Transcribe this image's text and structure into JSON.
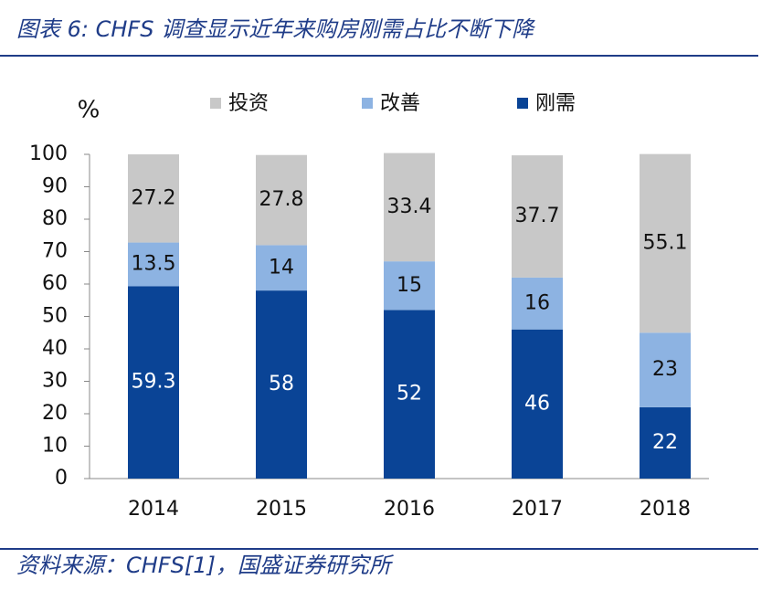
{
  "title": "图表 6:  CHFS 调查显示近年来购房刚需占比不断下降",
  "source": "资料来源：CHFS[1]，国盛证券研究所",
  "chart_data": {
    "type": "stacked-bar",
    "y_label": "%",
    "categories": [
      "2014",
      "2015",
      "2016",
      "2017",
      "2018"
    ],
    "series": [
      {
        "name": "投资",
        "color": "#c8c8c8",
        "values": [
          27.2,
          27.8,
          33.4,
          37.7,
          55.1
        ]
      },
      {
        "name": "改善",
        "color": "#8db3e2",
        "values": [
          13.5,
          14,
          15,
          16,
          23
        ]
      },
      {
        "name": "刚需",
        "color": "#0a4496",
        "values": [
          59.3,
          58,
          52,
          46,
          22
        ]
      }
    ],
    "ylim": [
      0,
      100
    ],
    "yticks": [
      0,
      10,
      20,
      30,
      40,
      50,
      60,
      70,
      80,
      90,
      100
    ]
  }
}
